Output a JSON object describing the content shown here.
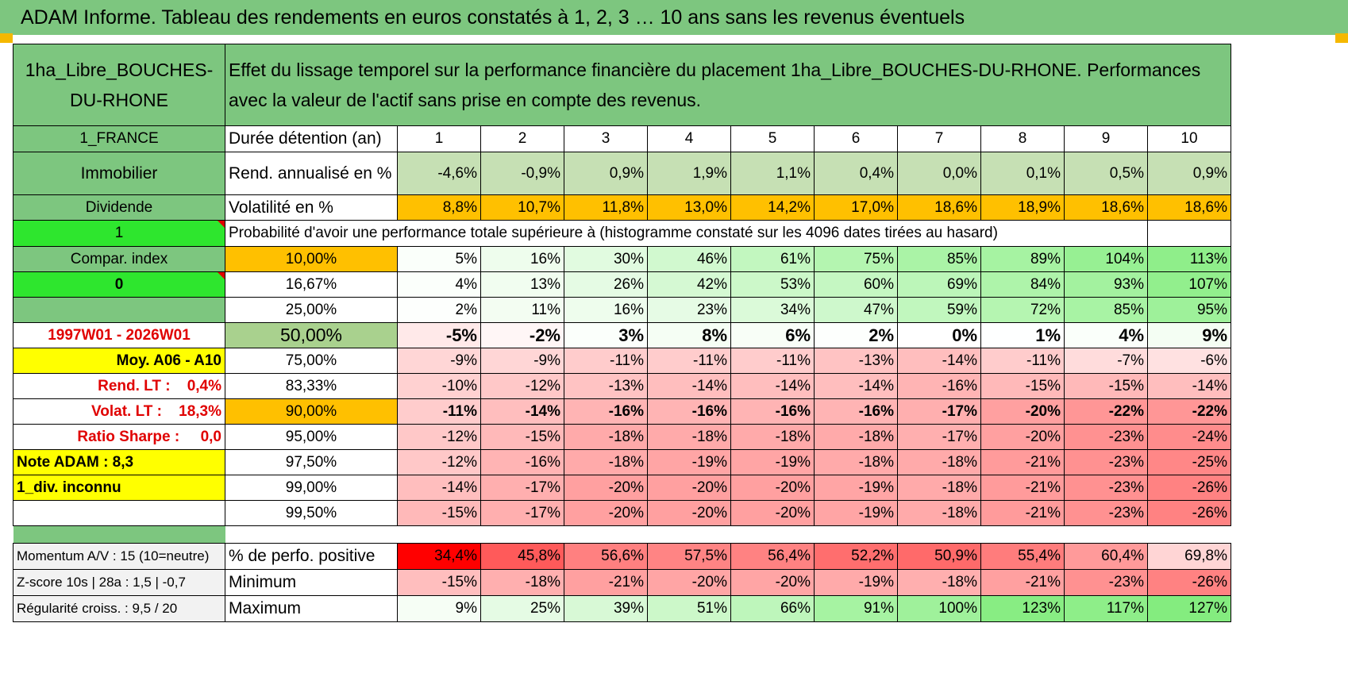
{
  "header": {
    "title": "ADAM Informe. Tableau des rendements en euros constatés à 1, 2, 3 … 10 ans sans les revenus éventuels"
  },
  "left": {
    "asset_name": "1ha_Libre_BOUCHES-DU-RHONE",
    "country": "1_FRANCE",
    "category": "Immobilier",
    "dividend_label": "Dividende",
    "value_1": "1",
    "compar_index": "Compar. index",
    "value_0": "0",
    "period": "1997W01 - 2026W01",
    "moy": "Moy. A06 - A10",
    "rend_lt": "Rend. LT :    0,4%",
    "volat_lt": "Volat. LT :    18,3%",
    "ratio_sharpe": "Ratio Sharpe :     0,0",
    "note_adam": "Note ADAM : 8,3",
    "div_inconnu": "1_div. inconnu",
    "momentum": "Momentum A/V : 15 (10=neutre)",
    "zscore": "Z-score 10s | 28a : 1,5 | -0,7",
    "regularite": "Régularité croiss. : 9,5 / 20"
  },
  "main": {
    "description": "Effet du lissage temporel sur la performance financière du placement 1ha_Libre_BOUCHES-DU-RHONE. Performances avec la valeur de l'actif sans prise en compte des revenus.",
    "duree_label": "Durée détention (an)",
    "years": [
      "1",
      "2",
      "3",
      "4",
      "5",
      "6",
      "7",
      "8",
      "9",
      "10"
    ],
    "rend_label": "Rend. annualisé en %",
    "rend": [
      "-4,6%",
      "-0,9%",
      "0,9%",
      "1,9%",
      "1,1%",
      "0,4%",
      "0,0%",
      "0,1%",
      "0,5%",
      "0,9%"
    ],
    "vol_label": "Volatilité en %",
    "vol": [
      "8,8%",
      "10,7%",
      "11,8%",
      "13,0%",
      "14,2%",
      "17,0%",
      "18,6%",
      "18,9%",
      "18,6%",
      "18,6%"
    ],
    "proba_label": "Probabilité d'avoir une performance totale supérieure à (histogramme constaté sur les 4096 dates tirées au hasard)",
    "quantiles": [
      {
        "label": "10,00%",
        "values": [
          "5%",
          "16%",
          "30%",
          "46%",
          "61%",
          "75%",
          "85%",
          "89%",
          "104%",
          "113%"
        ]
      },
      {
        "label": "16,67%",
        "values": [
          "4%",
          "13%",
          "26%",
          "42%",
          "53%",
          "60%",
          "69%",
          "84%",
          "93%",
          "107%"
        ]
      },
      {
        "label": "25,00%",
        "values": [
          "2%",
          "11%",
          "16%",
          "23%",
          "34%",
          "47%",
          "59%",
          "72%",
          "85%",
          "95%"
        ]
      },
      {
        "label": "50,00%",
        "values": [
          "-5%",
          "-2%",
          "3%",
          "8%",
          "6%",
          "2%",
          "0%",
          "1%",
          "4%",
          "9%"
        ]
      },
      {
        "label": "75,00%",
        "values": [
          "-9%",
          "-9%",
          "-11%",
          "-11%",
          "-11%",
          "-13%",
          "-14%",
          "-11%",
          "-7%",
          "-6%"
        ]
      },
      {
        "label": "83,33%",
        "values": [
          "-10%",
          "-12%",
          "-13%",
          "-14%",
          "-14%",
          "-14%",
          "-16%",
          "-15%",
          "-15%",
          "-14%"
        ]
      },
      {
        "label": "90,00%",
        "values": [
          "-11%",
          "-14%",
          "-16%",
          "-16%",
          "-16%",
          "-16%",
          "-17%",
          "-20%",
          "-22%",
          "-22%"
        ]
      },
      {
        "label": "95,00%",
        "values": [
          "-12%",
          "-15%",
          "-18%",
          "-18%",
          "-18%",
          "-18%",
          "-17%",
          "-20%",
          "-23%",
          "-24%"
        ]
      },
      {
        "label": "97,50%",
        "values": [
          "-12%",
          "-16%",
          "-18%",
          "-19%",
          "-19%",
          "-18%",
          "-18%",
          "-21%",
          "-23%",
          "-25%"
        ]
      },
      {
        "label": "99,00%",
        "values": [
          "-14%",
          "-17%",
          "-20%",
          "-20%",
          "-20%",
          "-19%",
          "-18%",
          "-21%",
          "-23%",
          "-26%"
        ]
      },
      {
        "label": "99,50%",
        "values": [
          "-15%",
          "-17%",
          "-20%",
          "-20%",
          "-20%",
          "-19%",
          "-18%",
          "-21%",
          "-23%",
          "-26%"
        ]
      }
    ],
    "pos_label": "% de perfo. positive",
    "pos": [
      "34,4%",
      "45,8%",
      "56,6%",
      "57,5%",
      "56,4%",
      "52,2%",
      "50,9%",
      "55,4%",
      "60,4%",
      "69,8%"
    ],
    "min_label": "Minimum",
    "min": [
      "-15%",
      "-18%",
      "-21%",
      "-20%",
      "-20%",
      "-19%",
      "-18%",
      "-21%",
      "-23%",
      "-26%"
    ],
    "max_label": "Maximum",
    "max": [
      "9%",
      "25%",
      "39%",
      "51%",
      "66%",
      "91%",
      "100%",
      "123%",
      "117%",
      "127%"
    ]
  },
  "colors": {
    "header_green": "#7dc67f",
    "bright_green": "#2ee62e",
    "yellow": "#ffff00",
    "orange": "#ffc000",
    "red_text": "#e00000",
    "pos_scale": [
      "#ff0000",
      "#ff5a5a",
      "#ff8080",
      "#ff8484",
      "#ff8282",
      "#ff6e6e",
      "#ff6a6a",
      "#ff7c7c",
      "#ff9a9a",
      "#ffd5d5"
    ]
  }
}
